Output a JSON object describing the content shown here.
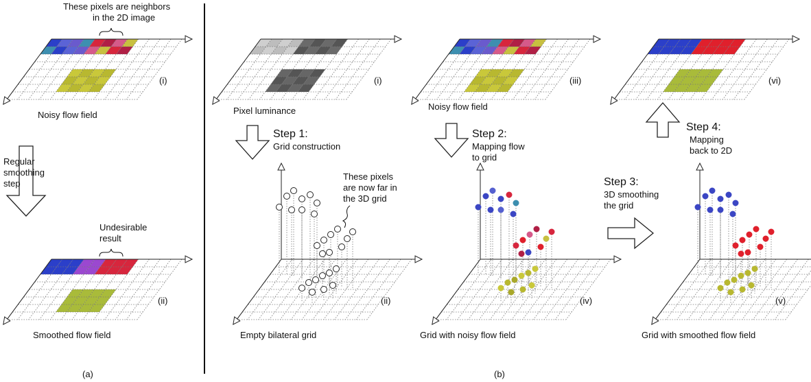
{
  "panel_a": {
    "neighbors_note": [
      "These pixels are neighbors",
      "in the 2D image"
    ],
    "label_i": "(i)",
    "caption_i": "Noisy flow field",
    "step": [
      "Regular",
      "smoothing",
      "step"
    ],
    "result_note": [
      "Undesirable",
      "result"
    ],
    "label_ii": "(ii)",
    "caption_ii": "Smoothed flow field",
    "panel_label": "(a)"
  },
  "panel_b": {
    "label_i": "(i)",
    "caption_i": "Pixel luminance",
    "step1_title": "Step 1:",
    "step1_text": [
      "Grid construction"
    ],
    "far_note": [
      "These pixels",
      "are now far in",
      "the 3D grid"
    ],
    "label_ii": "(ii)",
    "caption_ii": "Empty bilateral grid",
    "label_iii": "(iii)",
    "caption_iii": "Noisy flow field",
    "step2_title": "Step 2:",
    "step2_text": [
      "Mapping flow",
      "to grid"
    ],
    "label_iv": "(iv)",
    "caption_iv": "Grid with noisy flow field",
    "step3_title": "Step 3:",
    "step3_text": [
      "3D smoothing",
      "the grid"
    ],
    "label_v": "(v)",
    "caption_v": "Grid with smoothed flow field",
    "label_vi": "(vi)",
    "step4_title": "Step 4:",
    "step4_text": [
      "Mapping",
      "back to 2D"
    ],
    "panel_label": "(b)"
  }
}
